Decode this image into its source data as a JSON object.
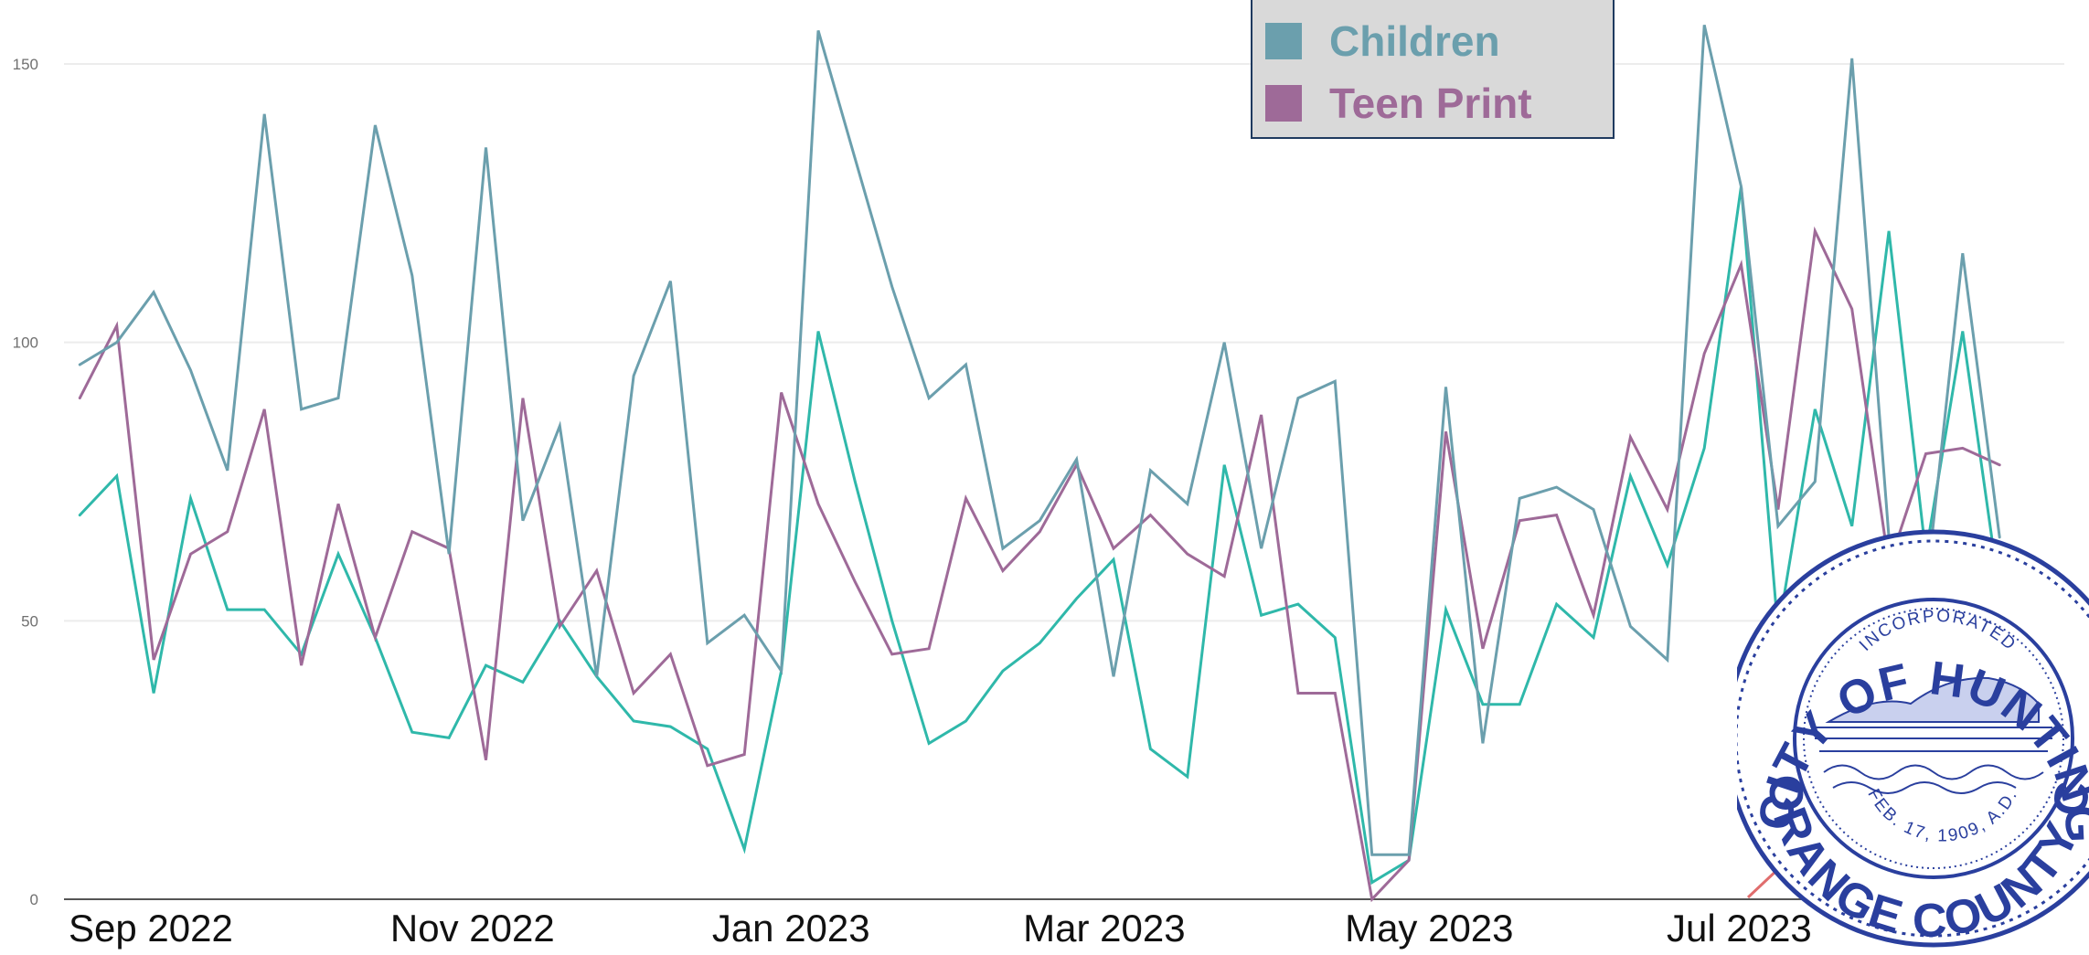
{
  "chart_data": {
    "type": "line",
    "title": "",
    "xlabel": "",
    "ylabel": "",
    "ylim": [
      0,
      160
    ],
    "y_ticks": [
      "0",
      "50",
      "100",
      "150"
    ],
    "x_ticks": [
      {
        "label": "Sep 2022",
        "date": "2022-09-01"
      },
      {
        "label": "Nov 2022",
        "date": "2022-11-01"
      },
      {
        "label": "Jan 2023",
        "date": "2023-01-01"
      },
      {
        "label": "Mar 2023",
        "date": "2023-03-01"
      },
      {
        "label": "May 2023",
        "date": "2023-05-01"
      },
      {
        "label": "Jul 2023",
        "date": "2023-07-01"
      }
    ],
    "x": [
      "2022-08-22",
      "2022-08-29",
      "2022-09-05",
      "2022-09-12",
      "2022-09-19",
      "2022-09-26",
      "2022-10-03",
      "2022-10-10",
      "2022-10-17",
      "2022-10-24",
      "2022-10-31",
      "2022-11-07",
      "2022-11-14",
      "2022-11-21",
      "2022-11-28",
      "2022-12-05",
      "2022-12-12",
      "2022-12-19",
      "2022-12-26",
      "2023-01-02",
      "2023-01-09",
      "2023-01-16",
      "2023-01-23",
      "2023-01-30",
      "2023-02-06",
      "2023-02-13",
      "2023-02-20",
      "2023-02-27",
      "2023-03-06",
      "2023-03-13",
      "2023-03-20",
      "2023-03-27",
      "2023-04-03",
      "2023-04-10",
      "2023-04-17",
      "2023-04-24",
      "2023-05-01",
      "2023-05-08",
      "2023-05-15",
      "2023-05-22",
      "2023-05-29",
      "2023-06-05",
      "2023-06-12",
      "2023-06-19",
      "2023-06-26",
      "2023-07-03",
      "2023-07-10",
      "2023-07-17",
      "2023-07-24",
      "2023-07-31",
      "2023-08-07",
      "2023-08-14",
      "2023-08-21",
      "2023-08-28"
    ],
    "legend_placement": "top-center",
    "grid": true,
    "series": [
      {
        "name": "Children",
        "color": "#6b9fad",
        "values": [
          96,
          100,
          109,
          95,
          77,
          141,
          88,
          90,
          139,
          112,
          62,
          135,
          68,
          85,
          40,
          94,
          111,
          46,
          51,
          41,
          156,
          133,
          110,
          90,
          96,
          63,
          68,
          79,
          40,
          77,
          71,
          100,
          63,
          90,
          93,
          8,
          8,
          92,
          28,
          72,
          74,
          70,
          49,
          43,
          157,
          128,
          67,
          75,
          151,
          65,
          55,
          116,
          65,
          null
        ]
      },
      {
        "name": "Teen Print",
        "color": "#9e6a98",
        "values": [
          90,
          103,
          43,
          62,
          66,
          88,
          42,
          71,
          47,
          66,
          63,
          25,
          90,
          49,
          59,
          37,
          44,
          24,
          26,
          91,
          71,
          57,
          44,
          45,
          72,
          59,
          66,
          78,
          63,
          69,
          62,
          58,
          87,
          37,
          37,
          0,
          7,
          84,
          45,
          68,
          69,
          51,
          83,
          70,
          98,
          114,
          70,
          120,
          106,
          60,
          80,
          81,
          78,
          null
        ]
      },
      {
        "name": "",
        "color": "#2fb8aa",
        "values": [
          69,
          76,
          37,
          72,
          52,
          52,
          44,
          62,
          47,
          30,
          29,
          42,
          39,
          50,
          40,
          32,
          31,
          27,
          9,
          41,
          102,
          75,
          50,
          28,
          32,
          41,
          46,
          54,
          61,
          27,
          22,
          78,
          51,
          53,
          47,
          3,
          7,
          52,
          35,
          35,
          53,
          47,
          76,
          60,
          81,
          128,
          48,
          88,
          67,
          120,
          62,
          102,
          55,
          null
        ]
      }
    ]
  },
  "seal": {
    "top_text": "CITY OF HUNTINGTON BEACH",
    "bottom_text": "ORANGE COUNTY CALIFORNIA",
    "inner_top": "INCORPORATED",
    "inner_bottom": "FEB. 17, 1909, A.D.",
    "color": "#2a3f9e"
  }
}
